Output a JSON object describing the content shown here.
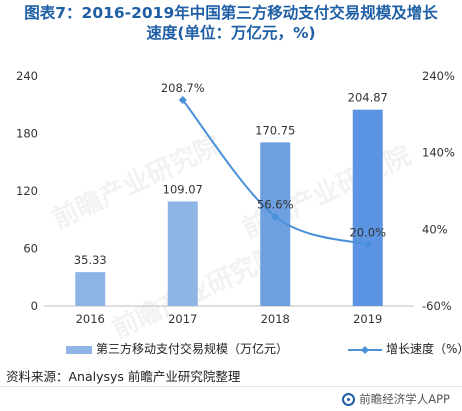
{
  "title_line1": "图表7：2016-2019年中国第三方移动支付交易规模及增长",
  "title_line2": "速度(单位：万亿元，%)",
  "chart_data": {
    "type": "bar",
    "categories": [
      "2016",
      "2017",
      "2018",
      "2019"
    ],
    "series": [
      {
        "name": "第三方移动支付交易规模（万亿元）",
        "type": "bar",
        "axis": "left",
        "values": [
          35.33,
          109.07,
          170.75,
          204.87
        ],
        "labels": [
          "35.33",
          "109.07",
          "170.75",
          "204.87"
        ]
      },
      {
        "name": "增长速度（%）",
        "type": "line",
        "axis": "right",
        "values": [
          null,
          208.7,
          56.6,
          20.0
        ],
        "labels": [
          "",
          "208.7%",
          "56.6%",
          "20.0%"
        ]
      }
    ],
    "y_left": {
      "min": 0,
      "max": 240,
      "ticks": [
        "0",
        "60",
        "120",
        "180",
        "240"
      ]
    },
    "y_right": {
      "min": -60,
      "max": 240,
      "ticks": [
        "-60%",
        "40%",
        "140%",
        "240%"
      ]
    },
    "colors": {
      "bars": [
        "#8fb4e6",
        "#8fb4e6",
        "#6e9fe0",
        "#5b94e2"
      ],
      "line": "#4a90d9",
      "title": "#1f5fa5"
    },
    "grid": false,
    "legend": "bottom"
  },
  "watermark": "前瞻产业研究院",
  "source": "资料来源：Analysys  前瞻产业研究院整理",
  "brand": "前瞻经济学人APP"
}
